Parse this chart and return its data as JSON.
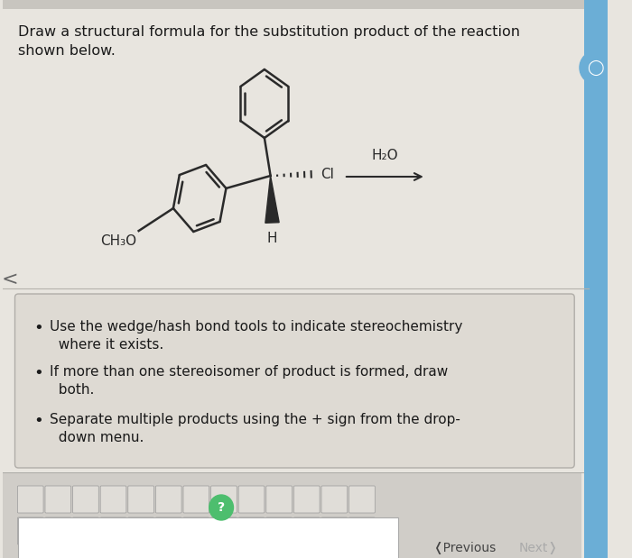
{
  "bg_color": "#e8e5df",
  "upper_bg": "#dedad3",
  "title_text": "Draw a structural formula for the substitution product of the reaction\nshown below.",
  "title_fontsize": 11.5,
  "title_color": "#1a1a1a",
  "bullet_points": [
    "Use the wedge/hash bond tools to indicate stereochemistry\n  where it exists.",
    "If more than one stereoisomer of product is formed, draw\n  both.",
    "Separate multiple products using the + sign from the drop-\n  down menu."
  ],
  "line_color": "#2a2a2a",
  "bond_lw": 1.8,
  "arrow_color": "#2a2a2a",
  "toolbar_bg": "#d0cdc8",
  "box_bg": "#dedad3",
  "box_edge": "#b0ada8",
  "right_strip_color": "#6baed6",
  "prev_next_color": "#555555",
  "next_color": "#aaaaaa"
}
